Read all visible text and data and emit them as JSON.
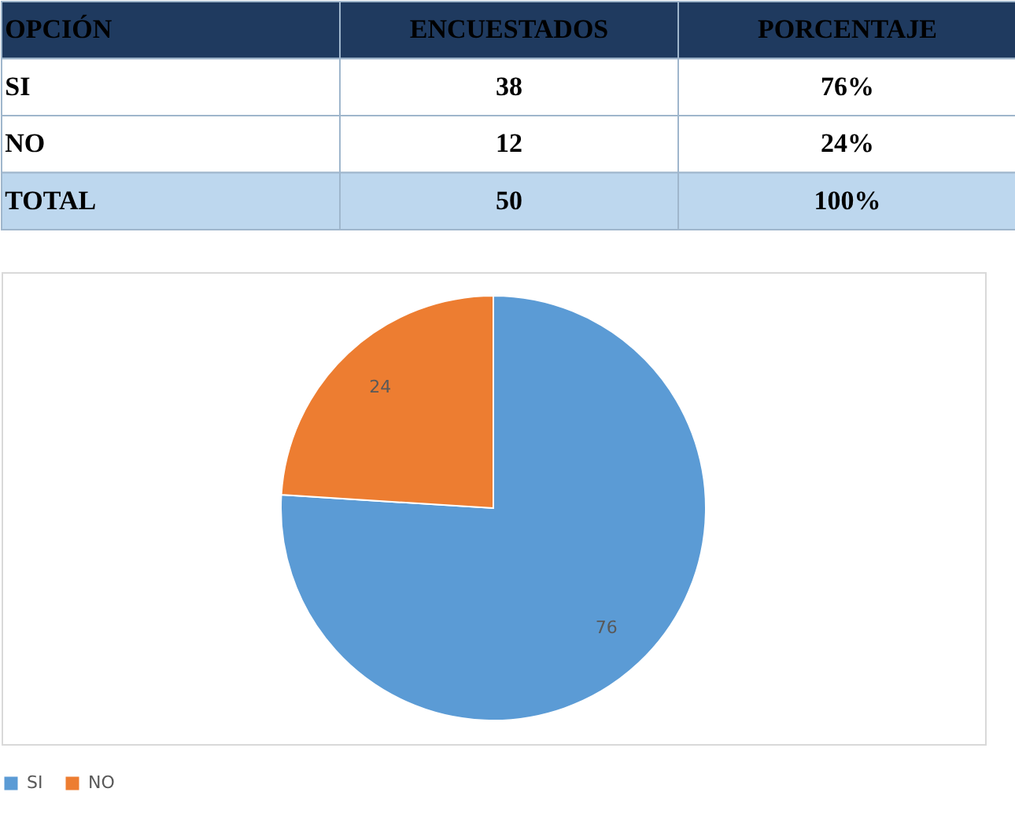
{
  "chart_data": [
    {
      "type": "other",
      "annotations": [
        "OPCIÓN",
        "ENCUESTADOS",
        "PORCENTAJE",
        "SI",
        "38",
        "76%",
        "NO",
        "12",
        "24%",
        "TOTAL",
        "50",
        "100%"
      ]
    },
    {
      "type": "pie",
      "categories": [
        "SI",
        "NO"
      ],
      "values": [
        76,
        24
      ],
      "colors": [
        "#5b9bd5",
        "#ed7d31"
      ],
      "data_labels": true,
      "legend": "bottom"
    }
  ]
}
